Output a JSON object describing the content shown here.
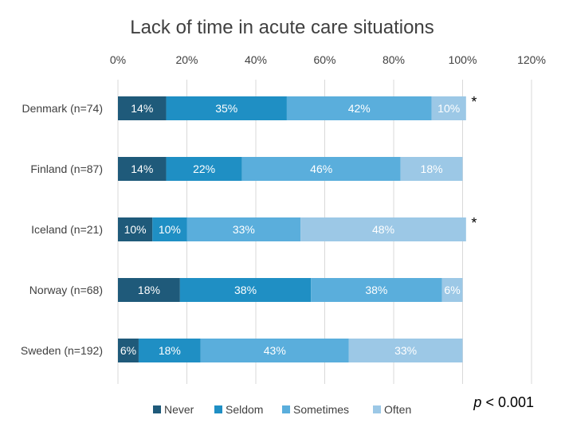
{
  "chart_data": {
    "type": "bar",
    "orientation": "horizontal",
    "stacked": true,
    "title": "Lack of time in acute care situations",
    "xlabel": "",
    "ylabel": "",
    "xlim": [
      0,
      120
    ],
    "x_ticks": [
      "0%",
      "20%",
      "40%",
      "60%",
      "80%",
      "100%",
      "120%"
    ],
    "grid": true,
    "legend_position": "bottom",
    "categories": [
      "Denmark (n=74)",
      "Finland (n=87)",
      "Iceland (n=21)",
      "Norway (n=68)",
      "Sweden (n=192)"
    ],
    "series": [
      {
        "name": "Never",
        "color": "#1f5a7a",
        "values": [
          14,
          14,
          10,
          18,
          6
        ]
      },
      {
        "name": "Seldom",
        "color": "#1f8fc4",
        "values": [
          35,
          22,
          10,
          38,
          18
        ]
      },
      {
        "name": "Sometimes",
        "color": "#5aaedc",
        "values": [
          42,
          46,
          33,
          38,
          43
        ]
      },
      {
        "name": "Often",
        "color": "#9cc8e6",
        "values": [
          10,
          18,
          48,
          6,
          33
        ]
      }
    ],
    "data_labels": [
      [
        "14%",
        "35%",
        "42%",
        "10%"
      ],
      [
        "14%",
        "22%",
        "46%",
        "18%"
      ],
      [
        "10%",
        "10%",
        "33%",
        "48%"
      ],
      [
        "18%",
        "38%",
        "38%",
        "6%"
      ],
      [
        "6%",
        "18%",
        "43%",
        "33%"
      ]
    ],
    "markers": [
      "*",
      "",
      "*",
      "",
      ""
    ],
    "annotation": {
      "italic": "p",
      "rest": " < 0.001"
    }
  }
}
